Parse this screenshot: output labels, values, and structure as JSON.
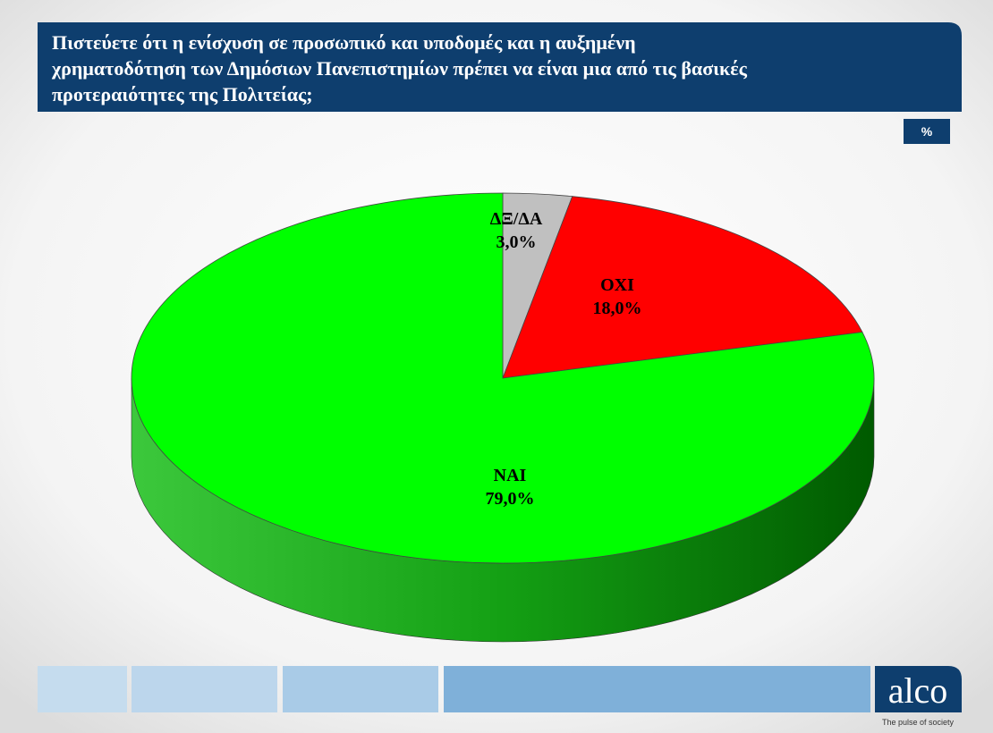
{
  "chart_data": {
    "type": "pie3d",
    "title": [
      "Πιστεύετε ότι η ενίσχυση σε προσωπικό και υποδομές  και η αυξημένη",
      "χρηματοδότηση των Δημόσιων Πανεπιστημίων πρέπει να είναι μια από τις βασικές",
      "προτεραιότητες της Πολιτείας;"
    ],
    "unit_badge": "%",
    "categories": [
      "ΔΞ/ΔΑ",
      "ΟΧΙ",
      "ΝΑΙ"
    ],
    "values": [
      3.0,
      18.0,
      79.0
    ],
    "value_labels": [
      "3,0%",
      "18,0%",
      "79,0%"
    ],
    "colors": [
      "#c0c0c0",
      "#ff0000",
      "#00ff00"
    ]
  },
  "brand": {
    "logo": "alco",
    "tagline": "The pulse of society"
  }
}
